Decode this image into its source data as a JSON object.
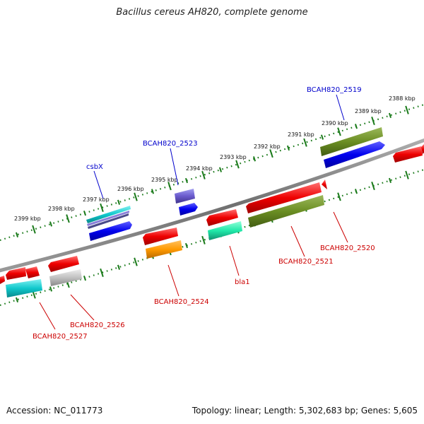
{
  "title": "Bacillus cereus AH820, complete genome",
  "footer": {
    "accession": "Accession: NC_011773",
    "summary": "Topology: linear; Length: 5,302,683 bp; Genes: 5,605"
  },
  "colors": {
    "backbone": "#808080",
    "tick": "#1a7a1a",
    "forward_label": "#0000cc",
    "reverse_label": "#cc0000",
    "ruler_text": "#111111"
  },
  "scale_labels": [
    "2388 kbp",
    "2389 kbp",
    "2390 kbp",
    "2391 kbp",
    "2392 kbp",
    "2393 kbp",
    "2394 kbp",
    "2395 kbp",
    "2396 kbp",
    "2397 kbp",
    "2398 kbp",
    "2399 kbp"
  ],
  "forward_labels": [
    "BCAH820_2519",
    "BCAH820_2523",
    "csbX"
  ],
  "reverse_labels": [
    "BCAH820_2520",
    "BCAH820_2521",
    "bla1",
    "BCAH820_2524",
    "BCAH820_2526",
    "BCAH820_2527"
  ]
}
